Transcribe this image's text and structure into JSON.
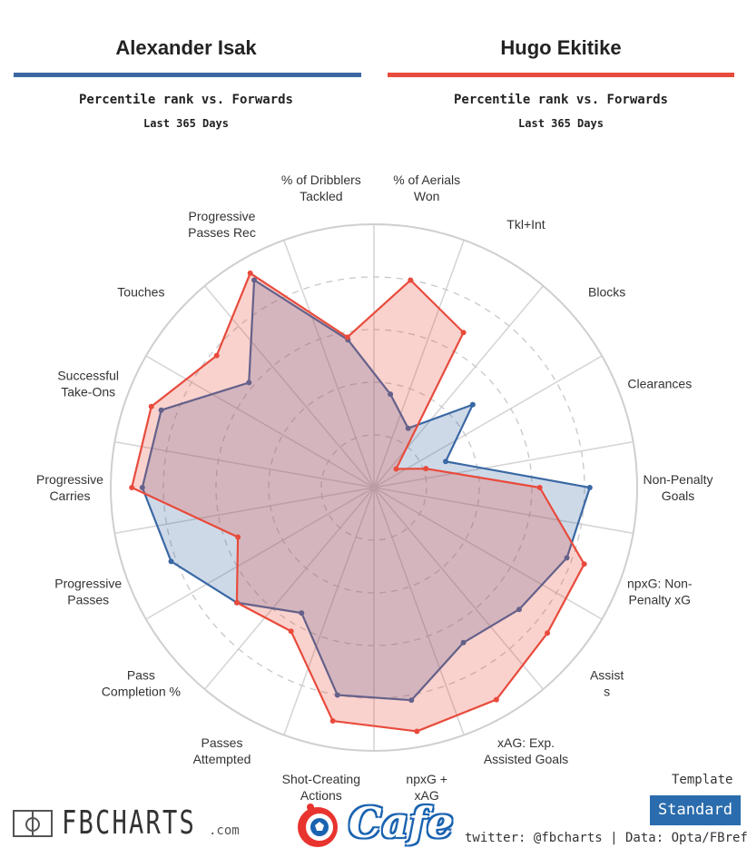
{
  "header": {
    "player_left": "Alexander Isak",
    "player_right": "Hugo Ekitike",
    "subtitle_left": "Percentile rank vs. Forwards",
    "period_left": "Last 365 Days",
    "subtitle_right": "Percentile rank vs. Forwards",
    "period_right": "Last 365 Days"
  },
  "colors": {
    "left": "#3a68a4",
    "right": "#e84b3c",
    "left_fill": "rgba(58,104,164,0.25)",
    "right_fill": "rgba(232,75,60,0.25)"
  },
  "chart_data": {
    "type": "radar",
    "range": [
      0,
      100
    ],
    "categories": [
      "Shot-Creating Actions",
      "Passes Attempted",
      "Pass Completion %",
      "Progressive Passes",
      "Progressive Carries",
      "Successful Take-Ons",
      "Touches",
      "Progressive Passes Rec",
      "% of Dribblers Tackled",
      "% of Aerials Won",
      "Tkl+Int",
      "Blocks",
      "Clearances",
      "Non-Penalty Goals",
      "npxG: Non-Penalty xG",
      "Assists",
      "xAG: Exp. Assisted Goals",
      "npxG + xAG"
    ],
    "series": [
      {
        "name": "Alexander Isak",
        "values": [
          80,
          55,
          68,
          82,
          88,
          86,
          62,
          91,
          57,
          36,
          26,
          49,
          29,
          82,
          78,
          72,
          68,
          82
        ]
      },
      {
        "name": "Hugo Ekitike",
        "values": [
          90,
          63,
          68,
          55,
          92,
          90,
          78,
          94,
          58,
          80,
          68,
          11,
          21,
          63,
          85,
          86,
          93,
          94
        ]
      }
    ]
  },
  "labels": [
    {
      "lines": [
        "Shot-Creating",
        "Actions"
      ]
    },
    {
      "lines": [
        "Passes",
        "Attempted"
      ]
    },
    {
      "lines": [
        "Pass",
        "Completion %"
      ]
    },
    {
      "lines": [
        "Progressive",
        "Passes"
      ]
    },
    {
      "lines": [
        "Progressive",
        "Carries"
      ]
    },
    {
      "lines": [
        "Successful",
        "Take-Ons"
      ]
    },
    {
      "lines": [
        "Touches"
      ]
    },
    {
      "lines": [
        "Progressive",
        "Passes Rec"
      ]
    },
    {
      "lines": [
        "% of Dribblers",
        "Tackled"
      ]
    },
    {
      "lines": [
        "% of Aerials",
        "Won"
      ]
    },
    {
      "lines": [
        "Tkl+Int"
      ]
    },
    {
      "lines": [
        "Blocks"
      ]
    },
    {
      "lines": [
        "Clearances"
      ]
    },
    {
      "lines": [
        "Non-Penalty",
        "Goals"
      ]
    },
    {
      "lines": [
        "npxG: Non-",
        "Penalty xG"
      ]
    },
    {
      "lines": [
        "Assist",
        "s"
      ]
    },
    {
      "lines": [
        "xAG: Exp.",
        "Assisted Goals"
      ]
    },
    {
      "lines": [
        "npxG +",
        "xAG"
      ]
    }
  ],
  "footer": {
    "logo_text": "FBCHARTS",
    "logo_domain": ".com",
    "watermark": "Cafe",
    "credit": "twitter: @fbcharts | Data: Opta/FBref",
    "template_label": "Template",
    "template_value": "Standard"
  }
}
